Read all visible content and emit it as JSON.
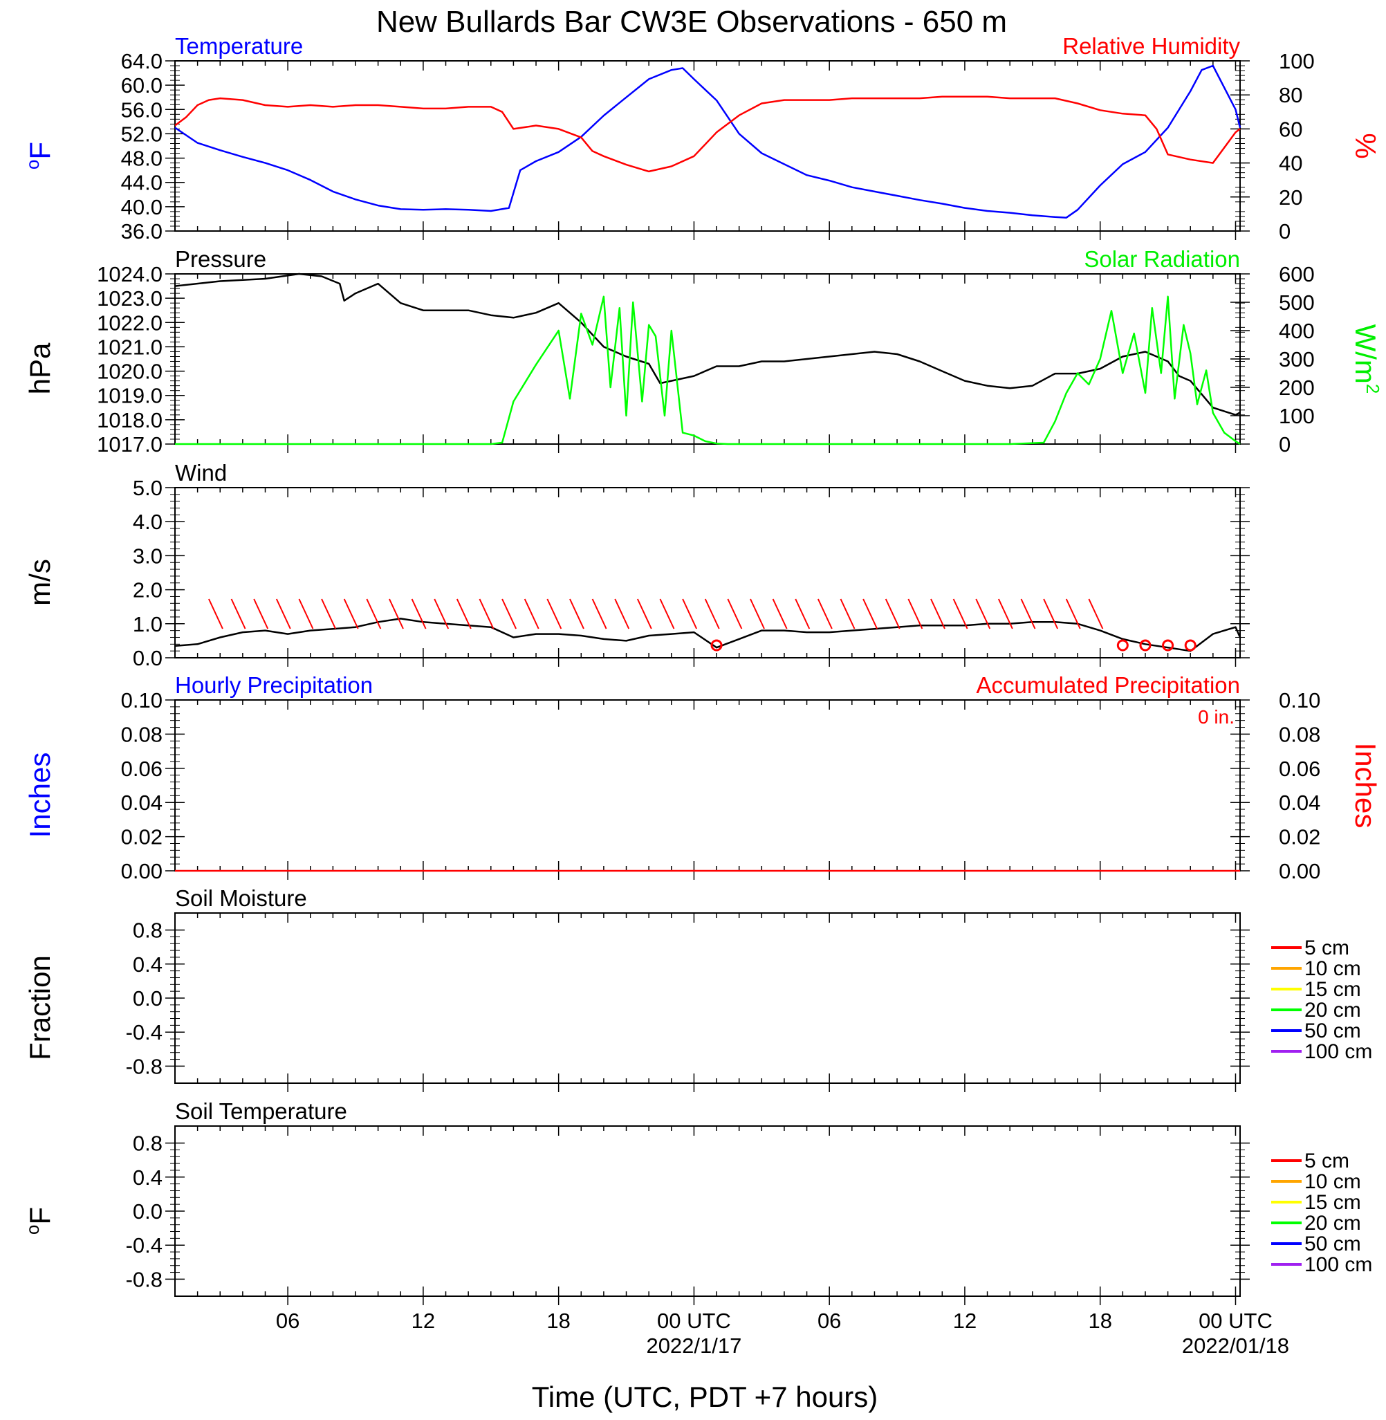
{
  "chart_data": {
    "type": "line",
    "title": "New Bullards Bar CW3E Observations - 650 m",
    "xlabel": "Time (UTC, PDT +7 hours)",
    "x_ticks": [
      "06",
      "12",
      "18",
      "00 UTC",
      "06",
      "12",
      "18",
      "00 UTC"
    ],
    "x_dates": [
      "2022/1/17",
      "2022/01/18"
    ],
    "x_range_hours": [
      1,
      48.2
    ],
    "panels": [
      {
        "name": "Temperature / Relative Humidity",
        "left_label": "Temperature",
        "right_label": "Relative Humidity",
        "left_unit": "oF",
        "right_unit": "%",
        "left_ylim": [
          36,
          64
        ],
        "left_ticks": [
          "64.0",
          "60.0",
          "56.0",
          "52.0",
          "48.0",
          "44.0",
          "40.0",
          "36.0"
        ],
        "right_ylim": [
          0,
          100
        ],
        "right_ticks": [
          "100",
          "80",
          "60",
          "40",
          "20",
          "0"
        ],
        "series": [
          {
            "name": "Temperature",
            "color": "#0000ff",
            "axis": "left",
            "x": [
              1,
              2,
              3,
              4,
              5,
              6,
              7,
              8,
              9,
              10,
              11,
              12,
              13,
              14,
              15,
              15.8,
              16.3,
              17,
              18,
              19,
              20,
              21,
              22,
              23,
              23.5,
              24,
              25,
              26,
              27,
              28,
              29,
              30,
              31,
              32,
              33,
              34,
              35,
              36,
              37,
              38,
              39,
              40,
              40.5,
              41,
              42,
              43,
              44,
              45,
              46,
              46.5,
              47,
              48,
              48.2
            ],
            "y": [
              53,
              50.5,
              49.3,
              48.2,
              47.2,
              46,
              44.4,
              42.5,
              41.2,
              40.2,
              39.6,
              39.5,
              39.6,
              39.5,
              39.3,
              39.8,
              46,
              47.5,
              49,
              51.5,
              55,
              58,
              61,
              62.5,
              62.8,
              61,
              57.5,
              52,
              48.8,
              47,
              45.2,
              44.3,
              43.2,
              42.5,
              41.8,
              41.1,
              40.5,
              39.8,
              39.3,
              39,
              38.6,
              38.3,
              38.2,
              39.5,
              43.5,
              47,
              49,
              53,
              59,
              62.5,
              63.2,
              56,
              53
            ]
          },
          {
            "name": "Relative Humidity",
            "color": "#ff0000",
            "axis": "right",
            "x": [
              1,
              1.5,
              2,
              2.5,
              3,
              4,
              5,
              6,
              7,
              8,
              9,
              10,
              11,
              12,
              13,
              14,
              15,
              15.5,
              16,
              17,
              18,
              19,
              19.5,
              20,
              21,
              22,
              23,
              24,
              25,
              26,
              27,
              28,
              29,
              30,
              31,
              32,
              33,
              34,
              35,
              36,
              37,
              38,
              39,
              40,
              41,
              42,
              43,
              44,
              44.5,
              45,
              46,
              47,
              48,
              48.2
            ],
            "y": [
              62,
              67,
              74,
              77,
              78,
              77,
              74,
              73,
              74,
              73,
              74,
              74,
              73,
              72,
              72,
              73,
              73,
              70,
              60,
              62,
              60,
              55,
              47,
              44,
              39,
              35,
              38,
              44,
              58,
              68,
              75,
              77,
              77,
              77,
              78,
              78,
              78,
              78,
              79,
              79,
              79,
              78,
              78,
              78,
              75,
              71,
              69,
              68,
              60,
              45,
              42,
              40,
              58,
              60
            ]
          }
        ]
      },
      {
        "name": "Pressure / Solar Radiation",
        "left_label": "Pressure",
        "right_label": "Solar Radiation",
        "left_unit": "hPa",
        "right_unit": "W/m",
        "right_unit_sup": "2",
        "left_ylim": [
          1017,
          1024
        ],
        "left_ticks": [
          "1024.0",
          "1023.0",
          "1022.0",
          "1021.0",
          "1020.0",
          "1019.0",
          "1018.0",
          "1017.0"
        ],
        "right_ylim": [
          0,
          600
        ],
        "right_ticks": [
          "600",
          "500",
          "400",
          "300",
          "200",
          "100",
          "0"
        ],
        "series": [
          {
            "name": "Pressure",
            "color": "#000000",
            "axis": "left",
            "x": [
              1,
              3,
              5,
              6.5,
              7.5,
              8.3,
              8.5,
              9,
              9.5,
              10,
              11,
              12,
              13,
              14,
              15,
              16,
              17,
              18,
              19,
              20,
              21,
              22,
              22.5,
              23,
              24,
              25,
              26,
              27,
              28,
              29,
              30,
              31,
              32,
              33,
              34,
              35,
              36,
              37,
              38,
              39,
              40,
              41,
              42,
              43,
              44,
              45,
              45.5,
              46,
              47,
              48,
              48.2
            ],
            "y": [
              1023.5,
              1023.7,
              1023.8,
              1024,
              1023.9,
              1023.6,
              1022.9,
              1023.2,
              1023.4,
              1023.6,
              1022.8,
              1022.5,
              1022.5,
              1022.5,
              1022.3,
              1022.2,
              1022.4,
              1022.8,
              1022,
              1021,
              1020.6,
              1020.3,
              1019.5,
              1019.6,
              1019.8,
              1020.2,
              1020.2,
              1020.4,
              1020.4,
              1020.5,
              1020.6,
              1020.7,
              1020.8,
              1020.7,
              1020.4,
              1020,
              1019.6,
              1019.4,
              1019.3,
              1019.4,
              1019.9,
              1019.9,
              1020.1,
              1020.6,
              1020.8,
              1020.4,
              1019.8,
              1019.6,
              1018.5,
              1018.2,
              1018.3
            ]
          },
          {
            "name": "Solar Radiation",
            "color": "#00ff00",
            "axis": "right",
            "x": [
              1,
              15,
              15.5,
              16,
              17,
              18,
              18.5,
              19,
              19.5,
              20,
              20.3,
              20.7,
              21,
              21.3,
              21.7,
              22,
              22.3,
              22.7,
              23,
              23.5,
              24,
              24.5,
              25,
              25.5,
              26,
              38,
              39.5,
              40,
              40.5,
              41,
              41.5,
              42,
              42.5,
              43,
              43.5,
              44,
              44.3,
              44.7,
              45,
              45.3,
              45.7,
              46,
              46.3,
              46.7,
              47,
              47.5,
              48,
              48.2
            ],
            "y": [
              0,
              0,
              5,
              150,
              280,
              400,
              160,
              460,
              350,
              520,
              200,
              480,
              100,
              500,
              150,
              420,
              380,
              100,
              400,
              40,
              30,
              10,
              2,
              0,
              0,
              0,
              5,
              80,
              180,
              250,
              210,
              300,
              470,
              250,
              390,
              180,
              480,
              250,
              520,
              160,
              420,
              320,
              140,
              260,
              110,
              40,
              10,
              0
            ]
          }
        ]
      },
      {
        "name": "Wind",
        "left_label": "Wind",
        "left_unit": "m/s",
        "left_ylim": [
          0,
          5
        ],
        "left_ticks": [
          "5.0",
          "4.0",
          "3.0",
          "2.0",
          "1.0",
          "0.0"
        ],
        "series": [
          {
            "name": "Wind",
            "color": "#000000",
            "axis": "left",
            "x": [
              1,
              2,
              3,
              4,
              5,
              6,
              7,
              8,
              9,
              10,
              11,
              12,
              13,
              14,
              15,
              16,
              17,
              18,
              19,
              20,
              21,
              22,
              23,
              24,
              25,
              26,
              27,
              28,
              29,
              30,
              31,
              32,
              33,
              34,
              35,
              36,
              37,
              38,
              39,
              40,
              41,
              42,
              43,
              44,
              45,
              46,
              47,
              48,
              48.2
            ],
            "y": [
              0.35,
              0.4,
              0.6,
              0.75,
              0.8,
              0.7,
              0.8,
              0.85,
              0.9,
              1.05,
              1.15,
              1.05,
              1.0,
              0.95,
              0.9,
              0.6,
              0.7,
              0.7,
              0.65,
              0.55,
              0.5,
              0.65,
              0.7,
              0.75,
              0.3,
              0.55,
              0.8,
              0.8,
              0.75,
              0.75,
              0.8,
              0.85,
              0.9,
              0.95,
              0.95,
              0.95,
              1.0,
              1.0,
              1.05,
              1.05,
              1.0,
              0.8,
              0.55,
              0.4,
              0.3,
              0.2,
              0.7,
              0.9,
              0.6
            ]
          }
        ],
        "barbs_color": "#ff0000",
        "calm_marker_x": [
          25,
          43,
          44,
          45,
          46
        ]
      },
      {
        "name": "Precipitation",
        "left_label": "Hourly Precipitation",
        "right_label": "Accumulated Precipitation",
        "accumulated_total": "0 in.",
        "left_unit": "Inches",
        "right_unit": "Inches",
        "left_ylim": [
          0,
          0.1
        ],
        "left_ticks": [
          "0.10",
          "0.08",
          "0.06",
          "0.04",
          "0.02",
          "0.00"
        ],
        "right_ylim": [
          0,
          0.1
        ],
        "right_ticks": [
          "0.10",
          "0.08",
          "0.06",
          "0.04",
          "0.02",
          "0.00"
        ],
        "series": [
          {
            "name": "Accumulated Precipitation",
            "color": "#ff0000",
            "axis": "right",
            "x": [
              1,
              48.2
            ],
            "y": [
              0,
              0
            ]
          }
        ]
      },
      {
        "name": "Soil Moisture",
        "left_label": "Soil Moisture",
        "left_unit": "Fraction",
        "left_ylim": [
          -1,
          1
        ],
        "left_ticks": [
          "0.8",
          "0.4",
          "0.0",
          "-0.4",
          "-0.8"
        ],
        "legend": [
          {
            "label": "5 cm",
            "color": "#ff0000"
          },
          {
            "label": "10 cm",
            "color": "#ffa500"
          },
          {
            "label": "15 cm",
            "color": "#ffff00"
          },
          {
            "label": "20 cm",
            "color": "#00ff00"
          },
          {
            "label": "50 cm",
            "color": "#0000ff"
          },
          {
            "label": "100 cm",
            "color": "#a020f0"
          }
        ]
      },
      {
        "name": "Soil Temperature",
        "left_label": "Soil Temperature",
        "left_unit": "oF",
        "left_ylim": [
          -1,
          1
        ],
        "left_ticks": [
          "0.8",
          "0.4",
          "0.0",
          "-0.4",
          "-0.8"
        ],
        "legend": [
          {
            "label": "5 cm",
            "color": "#ff0000"
          },
          {
            "label": "10 cm",
            "color": "#ffa500"
          },
          {
            "label": "15 cm",
            "color": "#ffff00"
          },
          {
            "label": "20 cm",
            "color": "#00ff00"
          },
          {
            "label": "50 cm",
            "color": "#0000ff"
          },
          {
            "label": "100 cm",
            "color": "#a020f0"
          }
        ]
      }
    ]
  }
}
